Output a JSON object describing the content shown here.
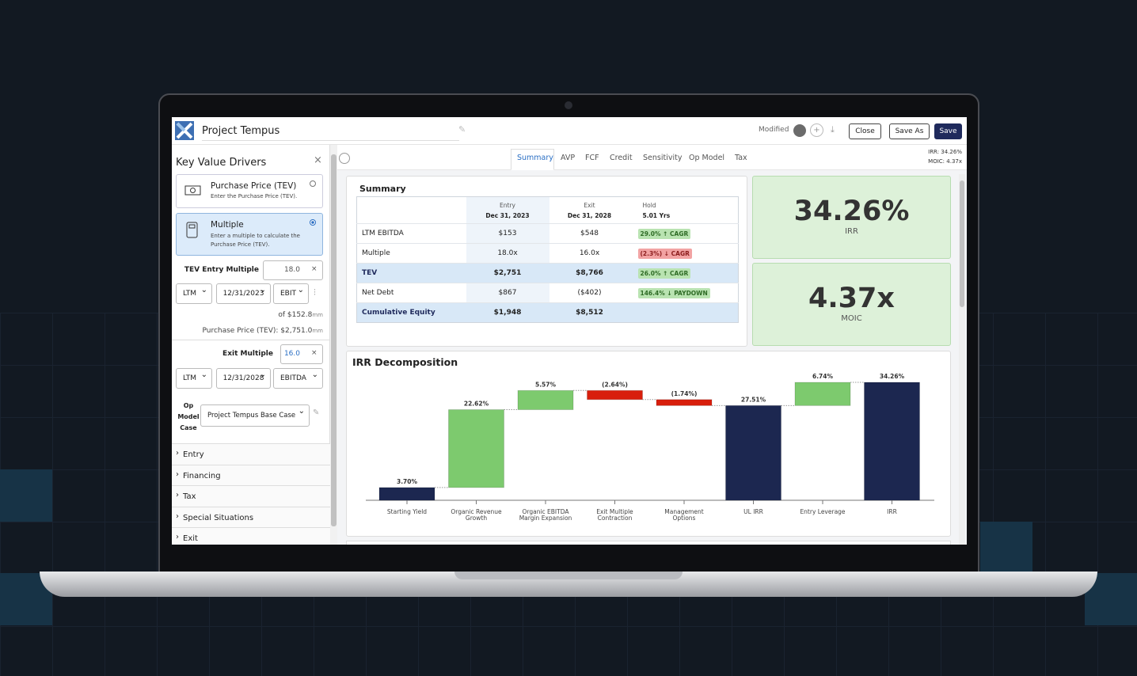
{
  "app": {
    "title": "Project Tempus",
    "status": "Modified",
    "buttons": [
      "Close",
      "Save As",
      "Save"
    ],
    "metrics": [
      {
        "label": "IRR:",
        "value": "34.26%"
      },
      {
        "label": "MOIC:",
        "value": "4.37x"
      }
    ]
  },
  "sidebar": {
    "title": "Key Value Drivers",
    "options": [
      {
        "title": "Purchase Price (TEV)",
        "desc": "Enter the Purchase Price (TEV)."
      },
      {
        "title": "Multiple",
        "desc": "Enter a multiple to calculate the Purchase Price (TEV)."
      }
    ],
    "entry_multiple": {
      "label": "TEV Entry Multiple",
      "value": "18.0",
      "period": "LTM",
      "date": "12/31/2023",
      "metric": "EBIT"
    },
    "of_text": "of $152.8",
    "purchase_text": "Purchase Price (TEV): $2,751.0",
    "unit": "mm",
    "exit_multiple": {
      "label": "Exit Multiple",
      "value": "16.0",
      "period": "LTM",
      "date": "12/31/2028",
      "metric": "EBITDA"
    },
    "op_model": {
      "label": "Op Model Case",
      "value": "Project Tempus Base Case"
    },
    "sections": [
      "Entry",
      "Financing",
      "Tax",
      "Special Situations",
      "Exit"
    ]
  },
  "tabs": [
    "Summary",
    "AVP",
    "FCF",
    "Credit",
    "Sensitivity",
    "Op Model",
    "Tax"
  ],
  "summary": {
    "title": "Summary",
    "columns": [
      {
        "top": "Entry",
        "bottom": "Dec 31, 2023"
      },
      {
        "top": "Exit",
        "bottom": "Dec 31, 2028"
      },
      {
        "top": "Hold",
        "bottom": "5.01 Yrs"
      }
    ],
    "rows": [
      {
        "label": "LTM EBITDA",
        "entry": "$153",
        "exit": "$548",
        "hold": "29.0% ↑ CAGR",
        "tone": "green",
        "emphasis": false
      },
      {
        "label": "Multiple",
        "entry": "18.0x",
        "exit": "16.0x",
        "hold": "(2.3%) ↓ CAGR",
        "tone": "red",
        "emphasis": false
      },
      {
        "label": "TEV",
        "entry": "$2,751",
        "exit": "$8,766",
        "hold": "26.0% ↑ CAGR",
        "tone": "green",
        "emphasis": true
      },
      {
        "label": "Net Debt",
        "entry": "$867",
        "exit": "($402)",
        "hold": "146.4% ↓ PAYDOWN",
        "tone": "green",
        "emphasis": false
      },
      {
        "label": "Cumulative Equity",
        "entry": "$1,948",
        "exit": "$8,512",
        "hold": null,
        "tone": null,
        "emphasis": true
      }
    ]
  },
  "kpis": [
    {
      "value": "34.26%",
      "label": "IRR"
    },
    {
      "value": "4.37x",
      "label": "MOIC"
    }
  ],
  "chart_data": {
    "type": "waterfall",
    "title": "IRR Decomposition",
    "categories": [
      "Starting Yield",
      "Organic Revenue Growth",
      "Organic EBITDA Margin Expansion",
      "Exit Multiple Contraction",
      "Management Options",
      "UL IRR",
      "Entry Leverage",
      "IRR"
    ],
    "values": [
      3.7,
      22.62,
      5.57,
      -2.64,
      -1.74,
      27.51,
      6.74,
      34.26
    ],
    "value_labels": [
      "3.70%",
      "22.62%",
      "5.57%",
      "(2.64%)",
      "(1.74%)",
      "27.51%",
      "6.74%",
      "34.26%"
    ],
    "totals": [
      false,
      false,
      false,
      false,
      false,
      true,
      false,
      true
    ],
    "colors": {
      "start": "#1c2750",
      "increase": "#7dca6e",
      "decrease": "#d81e0c",
      "total": "#1c2750"
    }
  }
}
